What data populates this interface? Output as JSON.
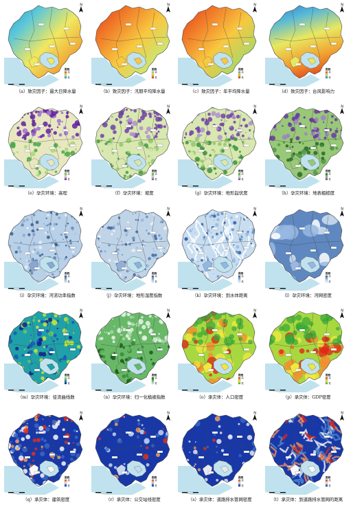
{
  "panels": [
    {
      "caption": "（a）致灾因子：最大日降水量",
      "legend_title": "图例",
      "north": "N",
      "colors": [
        "#1f8fd6",
        "#5ec8d8",
        "#f0e860",
        "#f0a030",
        "#e04020"
      ],
      "mode": "gradient-nw-se",
      "legend_hi": "高",
      "legend_lo": "低"
    },
    {
      "caption": "（b）致灾因子：汛期平均降水量",
      "legend_title": "图例",
      "north": "N",
      "colors": [
        "#e03018",
        "#f07828",
        "#f8c840",
        "#c8e878",
        "#58b8e0"
      ],
      "mode": "gradient-nw-se",
      "legend_hi": "高",
      "legend_lo": "低"
    },
    {
      "caption": "（c）致灾因子：年平均降水量",
      "legend_title": "图例",
      "north": "N",
      "colors": [
        "#e03018",
        "#f07828",
        "#f8c840",
        "#a8d868",
        "#3898d8"
      ],
      "mode": "gradient-nw-se",
      "legend_hi": "高",
      "legend_lo": "低"
    },
    {
      "caption": "（d）致灾因子：台风影响力",
      "legend_title": "图例",
      "north": "N",
      "colors": [
        "#2878c8",
        "#58b8d8",
        "#e8e860",
        "#f0a030",
        "#e03818"
      ],
      "mode": "gradient-n-s",
      "legend_hi": "高",
      "legend_lo": "低"
    },
    {
      "caption": "（e）孕灾环境：高程",
      "legend_title": "图例",
      "north": "N",
      "colors": [
        "#6020a0",
        "#a070d0",
        "#e8e8c0",
        "#a8d878",
        "#48a848"
      ],
      "mode": "terrain",
      "legend_hi": "高",
      "legend_lo": "低"
    },
    {
      "caption": "（f）孕灾环境：坡度",
      "legend_title": "图例",
      "north": "N",
      "colors": [
        "#7040a8",
        "#b090d0",
        "#d8e8b0",
        "#90c868",
        "#489848"
      ],
      "mode": "terrain",
      "legend_hi": "高",
      "legend_lo": "低"
    },
    {
      "caption": "（g）孕灾环境：地形起伏度",
      "legend_title": "图例",
      "north": "N",
      "colors": [
        "#7040a8",
        "#b090d0",
        "#d8e8b0",
        "#90c868",
        "#3c9040"
      ],
      "mode": "terrain",
      "legend_hi": "高",
      "legend_lo": "低"
    },
    {
      "caption": "（h）孕灾环境：地表粗糙度",
      "legend_title": "图例",
      "north": "N",
      "colors": [
        "#6838a0",
        "#a080c8",
        "#98c878",
        "#509848",
        "#286828"
      ],
      "mode": "terrain",
      "legend_hi": "高",
      "legend_lo": "低"
    },
    {
      "caption": "（i）孕灾环境：河流功率指数",
      "legend_title": "图例",
      "north": "N",
      "colors": [
        "#e8f0f8",
        "#b8d0e8",
        "#88a8d0",
        "#5880b0",
        "#305888"
      ],
      "mode": "speckle",
      "legend_hi": "高",
      "legend_lo": "低"
    },
    {
      "caption": "（j）孕灾环境：地形湿度指数",
      "legend_title": "图例",
      "north": "N",
      "colors": [
        "#f0f4f8",
        "#c0d4e8",
        "#90b0d8",
        "#6088b8",
        "#385e98"
      ],
      "mode": "speckle",
      "legend_hi": "高",
      "legend_lo": "低"
    },
    {
      "caption": "（k）孕灾环境：到水体距离",
      "legend_title": "图例",
      "north": "N",
      "colors": [
        "#f8fbff",
        "#c8ddf0",
        "#90b8e0",
        "#5888c0",
        "#2c5898"
      ],
      "mode": "rivers",
      "legend_hi": "高",
      "legend_lo": "低"
    },
    {
      "caption": "（l）孕灾环境：河网密度",
      "legend_title": "图例",
      "north": "N",
      "colors": [
        "#ffffff",
        "#d0e0f0",
        "#98b8e0",
        "#6088c0",
        "#305898"
      ],
      "mode": "blobs",
      "legend_hi": "高",
      "legend_lo": "低"
    },
    {
      "caption": "（m）孕灾环境：径流曲线数",
      "legend_title": "图例",
      "north": "N",
      "colors": [
        "#10208a",
        "#1858b8",
        "#20a0a8",
        "#68c868",
        "#c8e838"
      ],
      "mode": "runoff",
      "legend_hi": "高",
      "legend_lo": "低"
    },
    {
      "caption": "（n）孕灾环境：归一化植被指数",
      "legend_title": "图例",
      "north": "N",
      "colors": [
        "#e8f4e8",
        "#a8d8a8",
        "#68b868",
        "#388838",
        "#185818"
      ],
      "mode": "ndvi",
      "legend_hi": "高",
      "legend_lo": "低"
    },
    {
      "caption": "（o）承灾体：人口密度",
      "legend_title": "图例",
      "north": "N",
      "colors": [
        "#38a838",
        "#a8d840",
        "#f0e840",
        "#f09030",
        "#e02818"
      ],
      "mode": "hotspots",
      "legend_hi": "高",
      "legend_lo": "低"
    },
    {
      "caption": "（p）承灾体：GDP密度",
      "legend_title": "图例",
      "north": "N",
      "colors": [
        "#38a838",
        "#a8d840",
        "#f0e840",
        "#f09030",
        "#e02818"
      ],
      "mode": "hotspots-south",
      "legend_hi": "高",
      "legend_lo": "低"
    },
    {
      "caption": "（q）承灾体：建筑密度",
      "legend_title": "图例",
      "north": "N",
      "colors": [
        "#1838a8",
        "#3868c8",
        "#f8f8f8",
        "#f0a060",
        "#e03020"
      ],
      "mode": "build",
      "legend_hi": "高",
      "legend_lo": "低"
    },
    {
      "caption": "（r）承灾体：公交站线密度",
      "legend_title": "图例",
      "north": "N",
      "colors": [
        "#1838a8",
        "#3868c8",
        "#c8d8f0",
        "#f0a060",
        "#e03020"
      ],
      "mode": "bus",
      "legend_hi": "高",
      "legend_lo": "低"
    },
    {
      "caption": "（s）承灾体：道路排水管网密度",
      "legend_title": "图例",
      "north": "N",
      "colors": [
        "#1838a8",
        "#3868c8",
        "#e8e8f0",
        "#f0a060",
        "#e03020"
      ],
      "mode": "drain",
      "legend_hi": "高",
      "legend_lo": "低"
    },
    {
      "caption": "（t）承灾体：到道路排水管网的距离",
      "legend_title": "图例",
      "north": "N",
      "colors": [
        "#1838a8",
        "#5088d0",
        "#f8f8f8",
        "#f09060",
        "#d82818"
      ],
      "mode": "distance",
      "legend_hi": "高",
      "legend_lo": "低"
    }
  ],
  "sea_color": "#bfe2ee",
  "boundary_color": "#444444"
}
